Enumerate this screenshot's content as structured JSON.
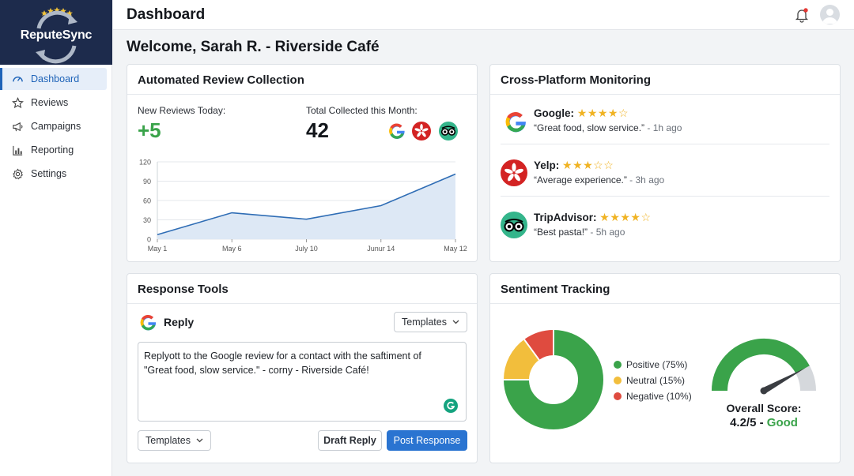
{
  "app": {
    "logo_text": "ReputeSync",
    "page_title": "Dashboard",
    "notification_dot_color": "#e53935"
  },
  "sidebar": {
    "items": [
      {
        "label": "Dashboard",
        "icon": "dashboard-gauge-icon",
        "active": true
      },
      {
        "label": "Reviews",
        "icon": "star-icon",
        "active": false
      },
      {
        "label": "Campaigns",
        "icon": "megaphone-icon",
        "active": false
      },
      {
        "label": "Reporting",
        "icon": "bar-chart-icon",
        "active": false
      },
      {
        "label": "Settings",
        "icon": "gear-icon",
        "active": false
      }
    ]
  },
  "welcome": "Welcome, Sarah R. - Riverside Café",
  "collection": {
    "title": "Automated Review Collection",
    "new_label": "New Reviews Today:",
    "new_value": "+5",
    "total_label": "Total Collected this Month:",
    "total_value": "42",
    "platform_icons": [
      "google-icon",
      "yelp-icon",
      "tripadvisor-icon"
    ]
  },
  "chart_data": {
    "type": "area",
    "x": [
      "May 1",
      "May 6",
      "July 10",
      "Junur 14",
      "May 12"
    ],
    "values": [
      7,
      41,
      31,
      52,
      101
    ],
    "yticks": [
      "120",
      "90",
      "60",
      "30",
      "0"
    ],
    "ylim": [
      0,
      120
    ],
    "color": "#2f6db5",
    "fill": "#dde8f5",
    "grid": true
  },
  "monitoring": {
    "title": "Cross-Platform Monitoring",
    "reviews": [
      {
        "platform": "Google:",
        "stars": "★★★★☆",
        "quote": "“Great food, slow service.”",
        "ago": " - 1h ago",
        "icon": "google-icon"
      },
      {
        "platform": "Yelp:",
        "stars": "★★★☆☆",
        "quote": "“Average experience.”",
        "ago": " - 3h ago",
        "icon": "yelp-icon"
      },
      {
        "platform": "TripAdvisor:",
        "stars": "★★★★☆",
        "quote": "“Best pasta!”",
        "ago": " - 5h ago",
        "icon": "tripadvisor-icon"
      }
    ]
  },
  "response": {
    "title": "Response Tools",
    "reply_label": "Reply",
    "templates_top": "Templates",
    "text_line1": "Replyott to the Google review for a contact with the saftiment of",
    "text_line2": "\"Great food, slow service.\" - corny - Riverside Café!",
    "templates_bottom": "Templates",
    "draft_label": "Draft Reply",
    "post_label": "Post Response"
  },
  "sentiment": {
    "title": "Sentiment Tracking",
    "segments": [
      {
        "label": "Positive (75%)",
        "pct": 75,
        "color": "#3aa34a"
      },
      {
        "label": "Neutral (15%)",
        "pct": 15,
        "color": "#f2be3c"
      },
      {
        "label": "Negative (10%)",
        "pct": 10,
        "color": "#df4b3f"
      }
    ],
    "score_label": "Overall Score:",
    "score_value": "4.2/5",
    "score_sep": " - ",
    "score_word": "Good",
    "score_fraction": 0.84,
    "good_color": "#3aa34a"
  }
}
